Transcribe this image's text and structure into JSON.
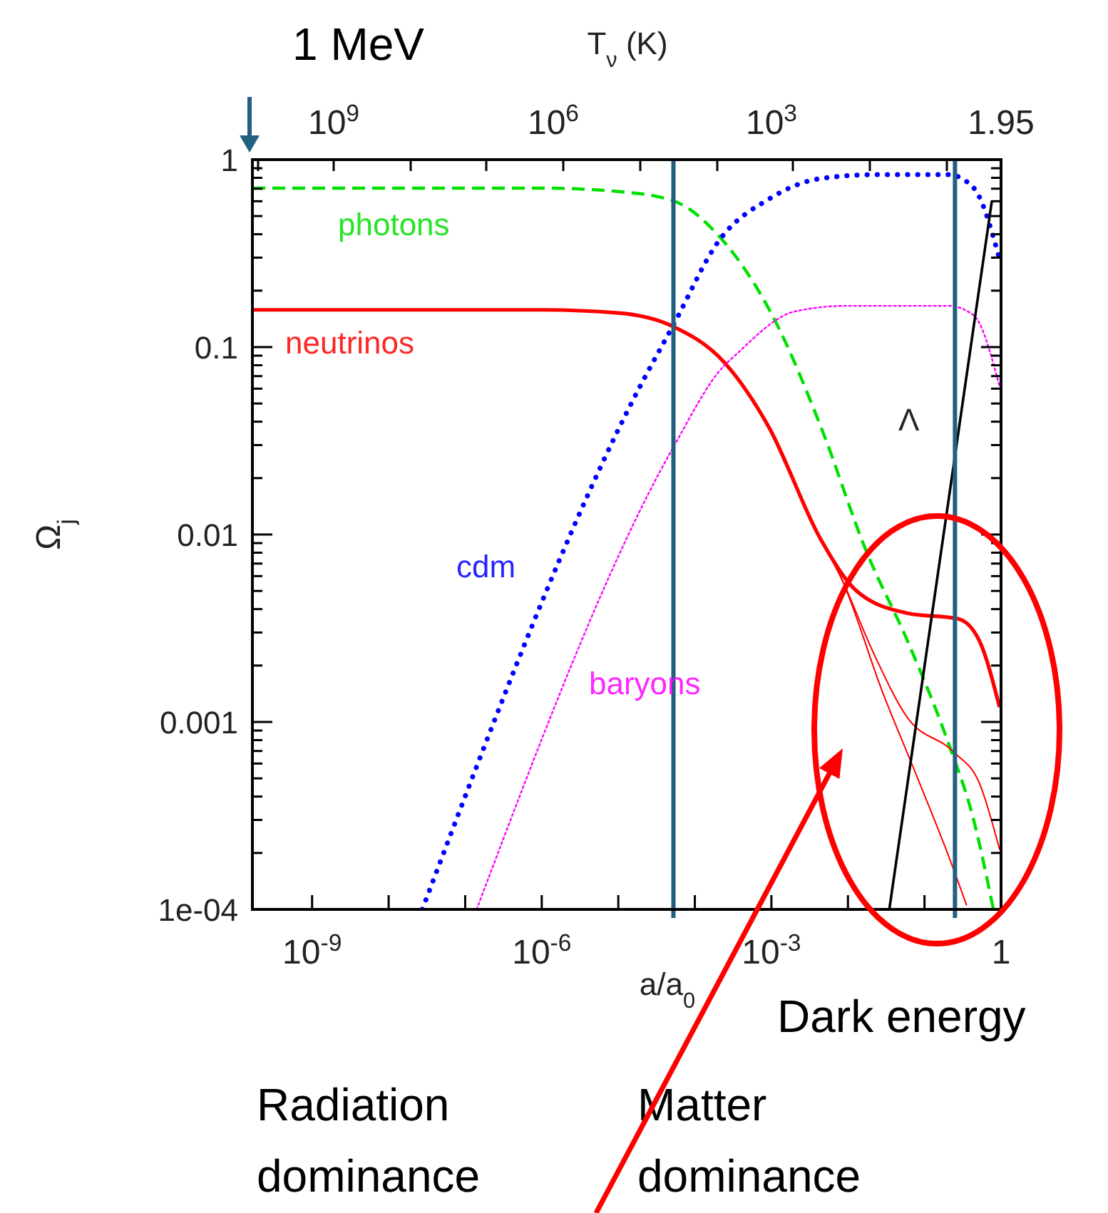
{
  "chart_data": {
    "type": "line",
    "xlabel": "a/a$_{0}$",
    "ylabel": "Ω$_{j}$",
    "x2label": "T$_{ν}$ (K)",
    "log": "xy",
    "xlim": [
      1.66e-10,
      1
    ],
    "ylim": [
      0.0001,
      1
    ],
    "xticks": [
      {
        "value": 1e-09,
        "label": "10$^{-9}$"
      },
      {
        "value": 1e-08,
        "label": null
      },
      {
        "value": 1e-07,
        "label": null
      },
      {
        "value": 1e-06,
        "label": "10$^{-6}$"
      },
      {
        "value": 1e-05,
        "label": null
      },
      {
        "value": 0.0001,
        "label": null
      },
      {
        "value": 0.001,
        "label": "10$^{-3}$"
      },
      {
        "value": 0.01,
        "label": null
      },
      {
        "value": 0.1,
        "label": null
      },
      1
    ],
    "yticks": [
      {
        "value": 0.0001,
        "label": "1e-04"
      },
      {
        "value": 0.0002,
        "label": null
      },
      {
        "value": 0.0003,
        "label": null
      },
      {
        "value": 0.0004,
        "label": null
      },
      {
        "value": 0.0005,
        "label": null
      },
      {
        "value": 0.0006,
        "label": null
      },
      {
        "value": 0.0007,
        "label": null
      },
      {
        "value": 0.0008,
        "label": null
      },
      {
        "value": 0.0009,
        "label": null
      },
      0.001,
      {
        "value": 0.002,
        "label": null
      },
      {
        "value": 0.003,
        "label": null
      },
      {
        "value": 0.004,
        "label": null
      },
      {
        "value": 0.005,
        "label": null
      },
      {
        "value": 0.006,
        "label": null
      },
      {
        "value": 0.007,
        "label": null
      },
      {
        "value": 0.008,
        "label": null
      },
      {
        "value": 0.009,
        "label": null
      },
      0.01,
      {
        "value": 0.02,
        "label": null
      },
      {
        "value": 0.03,
        "label": null
      },
      {
        "value": 0.04,
        "label": null
      },
      {
        "value": 0.05,
        "label": null
      },
      {
        "value": 0.06,
        "label": null
      },
      {
        "value": 0.07,
        "label": null
      },
      {
        "value": 0.08,
        "label": null
      },
      {
        "value": 0.09,
        "label": null
      },
      0.1,
      {
        "value": 0.2,
        "label": null
      },
      {
        "value": 0.3,
        "label": null
      },
      {
        "value": 0.4,
        "label": null
      },
      {
        "value": 0.5,
        "label": null
      },
      {
        "value": 0.6,
        "label": null
      },
      {
        "value": 0.7,
        "label": null
      },
      {
        "value": 0.8,
        "label": null
      },
      {
        "value": 0.9,
        "label": null
      },
      1
    ],
    "series": [
      {
        "name": "photons",
        "color": "#00e000",
        "line_style": "dashed",
        "x": [
          1.66e-10,
          1e-06,
          1e-05,
          5.25e-05,
          0.000209,
          0.00112,
          0.00447,
          0.0174,
          0.0603,
          0.204,
          0.437,
          0.794
        ],
        "values": [
          0.705,
          0.705,
          0.676,
          0.603,
          0.389,
          0.138,
          0.0372,
          0.00813,
          0.00269,
          0.000776,
          0.000302,
          0.0001
        ]
      },
      {
        "name": "neutrinos",
        "color": "#ff0000",
        "line_style": "solid",
        "x": [
          1.66e-10,
          1e-06,
          1e-05,
          5.13e-05,
          0.00024,
          0.000933,
          0.00447,
          0.0129,
          0.0603,
          0.275,
          0.525,
          0.955
        ],
        "values": [
          0.158,
          0.158,
          0.152,
          0.129,
          0.0832,
          0.0372,
          0.00933,
          0.00501,
          0.0038,
          0.00355,
          0.00269,
          0.0012
        ]
      },
      {
        "color": "#ff0000",
        "line_style": "solid",
        "x": [
          0.000933,
          0.00447,
          0.00813,
          0.0209,
          0.0603,
          0.24,
          0.525,
          0.955
        ],
        "values": [
          0.0372,
          0.00933,
          0.00589,
          0.0024,
          0.00105,
          0.000692,
          0.000468,
          0.000209
        ]
      },
      {
        "color": "#ff0000",
        "line_style": "solid",
        "x": [
          0.000933,
          0.00447,
          0.00813,
          0.0282,
          0.0813,
          0.204,
          0.355
        ],
        "values": [
          0.0372,
          0.00933,
          0.00589,
          0.00145,
          0.000501,
          0.000195,
          0.000105
        ]
      },
      {
        "name": "cdm",
        "color": "#0000ff",
        "line_style": "dotted",
        "x": [
          2.75e-08,
          2.04e-05,
          5.13e-05,
          0.000209,
          0.000933,
          0.00447,
          0.0245,
          0.204,
          0.437,
          0.955
        ],
        "values": [
          0.0001,
          0.0646,
          0.129,
          0.372,
          0.617,
          0.794,
          0.832,
          0.832,
          0.708,
          0.295
        ]
      },
      {
        "name": "baryons",
        "color": "#ff00ff",
        "line_style": "dotted",
        "x": [
          1.41e-07,
          5.13e-05,
          0.00024,
          0.000324,
          0.00204,
          0.00955,
          0.204,
          0.437,
          0.955
        ],
        "values": [
          0.0001,
          0.0288,
          0.0794,
          0.0891,
          0.155,
          0.166,
          0.166,
          0.148,
          0.0617
        ]
      },
      {
        "name": "Λ",
        "color": "#000000",
        "line_style": "solid",
        "x": [
          0.0347,
          0.759
        ],
        "values": [
          0.0001,
          0.603
        ]
      }
    ],
    "ref_lines": [
      {
        "axis": "x",
        "value": 5.25e-05,
        "color": "#236080"
      },
      {
        "axis": "x",
        "value": 0.25,
        "color": "#236080"
      }
    ],
    "annotations": [
      "1 MeV",
      "Radiation dominance",
      "Matter dominance",
      "Dark energy",
      "10$^{9}$",
      "10$^{6}$",
      "10$^{3}$",
      "1.95"
    ]
  }
}
